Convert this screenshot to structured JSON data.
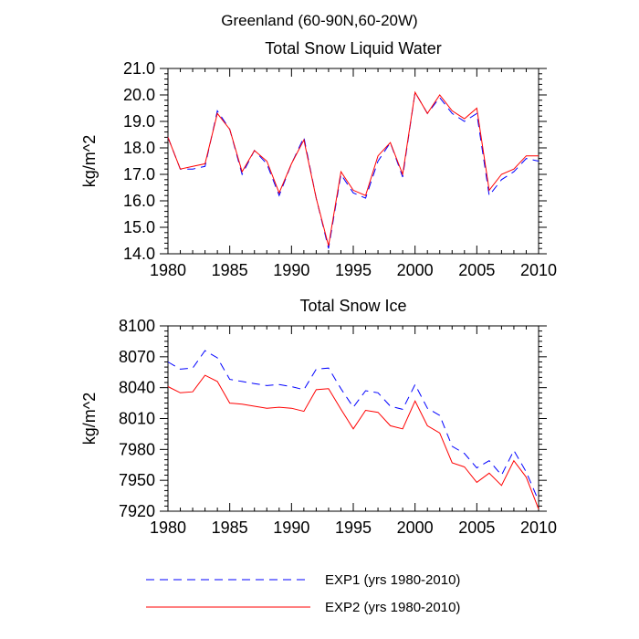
{
  "figure": {
    "title": "Greenland (60-90N,60-20W)"
  },
  "legend": [
    {
      "label": "EXP1 (yrs 1980-2010)",
      "color": "#0000ff",
      "dash": "dashed"
    },
    {
      "label": "EXP2 (yrs 1980-2010)",
      "color": "#ff0000",
      "dash": "solid"
    }
  ],
  "chart_data": [
    {
      "type": "line",
      "title": "Total Snow Liquid Water",
      "xlabel": "",
      "ylabel": "kg/m^2",
      "xlim": [
        1980,
        2010
      ],
      "ylim": [
        14.0,
        21.0
      ],
      "xticks": [
        1980,
        1985,
        1990,
        1995,
        2000,
        2005,
        2010
      ],
      "xtick_labels": [
        "1980",
        "1985",
        "1990",
        "1995",
        "2000",
        "2005",
        "2010"
      ],
      "yticks": [
        14,
        15,
        16,
        17,
        18,
        19,
        20,
        21
      ],
      "ytick_labels": [
        "14.0",
        "15.0",
        "16.0",
        "17.0",
        "18.0",
        "19.0",
        "20.0",
        "21.0"
      ],
      "grid": false,
      "x": [
        1980,
        1981,
        1982,
        1983,
        1984,
        1985,
        1986,
        1987,
        1988,
        1989,
        1990,
        1991,
        1992,
        1993,
        1994,
        1995,
        1996,
        1997,
        1998,
        1999,
        2000,
        2001,
        2002,
        2003,
        2004,
        2005,
        2006,
        2007,
        2008,
        2009,
        2010
      ],
      "series": [
        {
          "name": "EXP1 (yrs 1980-2010)",
          "color": "#0000ff",
          "dash": "dashed",
          "values": [
            18.4,
            17.2,
            17.2,
            17.3,
            19.4,
            18.7,
            17.0,
            17.9,
            17.4,
            16.2,
            17.4,
            18.4,
            16.1,
            14.2,
            17.0,
            16.3,
            16.1,
            17.5,
            18.2,
            16.9,
            20.1,
            19.3,
            19.9,
            19.3,
            19.0,
            19.3,
            16.2,
            16.8,
            17.1,
            17.6,
            17.5
          ]
        },
        {
          "name": "EXP2 (yrs 1980-2010)",
          "color": "#ff0000",
          "dash": "solid",
          "values": [
            18.4,
            17.2,
            17.3,
            17.4,
            19.3,
            18.7,
            17.1,
            17.9,
            17.5,
            16.3,
            17.4,
            18.3,
            16.1,
            14.3,
            17.1,
            16.4,
            16.2,
            17.7,
            18.2,
            17.0,
            20.1,
            19.3,
            20.0,
            19.4,
            19.1,
            19.5,
            16.4,
            17.0,
            17.2,
            17.7,
            17.7
          ]
        }
      ]
    },
    {
      "type": "line",
      "title": "Total Snow Ice",
      "xlabel": "",
      "ylabel": "kg/m^2",
      "xlim": [
        1980,
        2010
      ],
      "ylim": [
        7920,
        8100
      ],
      "xticks": [
        1980,
        1985,
        1990,
        1995,
        2000,
        2005,
        2010
      ],
      "xtick_labels": [
        "1980",
        "1985",
        "1990",
        "1995",
        "2000",
        "2005",
        "2010"
      ],
      "yticks": [
        7920,
        7950,
        7980,
        8010,
        8040,
        8070,
        8100
      ],
      "ytick_labels": [
        "7920",
        "7950",
        "7980",
        "8010",
        "8040",
        "8070",
        "8100"
      ],
      "grid": false,
      "x": [
        1980,
        1981,
        1982,
        1983,
        1984,
        1985,
        1986,
        1987,
        1988,
        1989,
        1990,
        1991,
        1992,
        1993,
        1994,
        1995,
        1996,
        1997,
        1998,
        1999,
        2000,
        2001,
        2002,
        2003,
        2004,
        2005,
        2006,
        2007,
        2008,
        2009,
        2010
      ],
      "series": [
        {
          "name": "EXP1 (yrs 1980-2010)",
          "color": "#0000ff",
          "dash": "dashed",
          "values": [
            8065,
            8058,
            8059,
            8076,
            8069,
            8048,
            8046,
            8044,
            8042,
            8043,
            8041,
            8038,
            8058,
            8059,
            8039,
            8021,
            8037,
            8035,
            8022,
            8019,
            8043,
            8020,
            8013,
            7983,
            7976,
            7962,
            7969,
            7955,
            7979,
            7958,
            7930
          ]
        },
        {
          "name": "EXP2 (yrs 1980-2010)",
          "color": "#ff0000",
          "dash": "solid",
          "values": [
            8041,
            8035,
            8036,
            8052,
            8046,
            8025,
            8024,
            8022,
            8020,
            8021,
            8020,
            8017,
            8038,
            8039,
            8019,
            8000,
            8018,
            8016,
            8003,
            8000,
            8027,
            8003,
            7996,
            7967,
            7963,
            7948,
            7957,
            7945,
            7969,
            7953,
            7922
          ]
        }
      ]
    }
  ]
}
